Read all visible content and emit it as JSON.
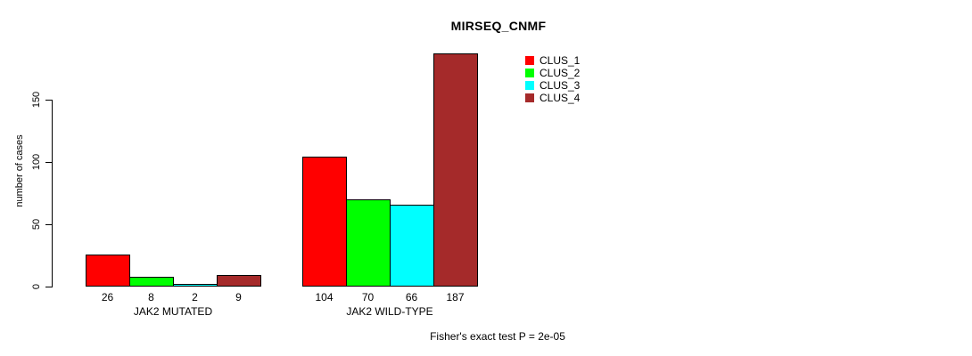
{
  "chart_data": {
    "type": "bar",
    "title": "MIRSEQ_CNMF",
    "xlabel": "",
    "ylabel": "number of cases",
    "categories": [
      "JAK2 MUTATED",
      "JAK2 WILD-TYPE"
    ],
    "series": [
      {
        "name": "CLUS_1",
        "color": "#FF0000",
        "values": [
          26,
          104
        ]
      },
      {
        "name": "CLUS_2",
        "color": "#00FF00",
        "values": [
          8,
          70
        ]
      },
      {
        "name": "CLUS_3",
        "color": "#00FFFF",
        "values": [
          2,
          66
        ]
      },
      {
        "name": "CLUS_4",
        "color": "#A52A2A",
        "values": [
          9,
          187
        ]
      }
    ],
    "yticks": [
      0,
      50,
      100,
      150
    ],
    "ylim": [
      0,
      190
    ],
    "grid": false,
    "bar_value_labels": true,
    "legend_position": "top-right",
    "annotation": "Fisher's exact test P = 2e-05"
  }
}
